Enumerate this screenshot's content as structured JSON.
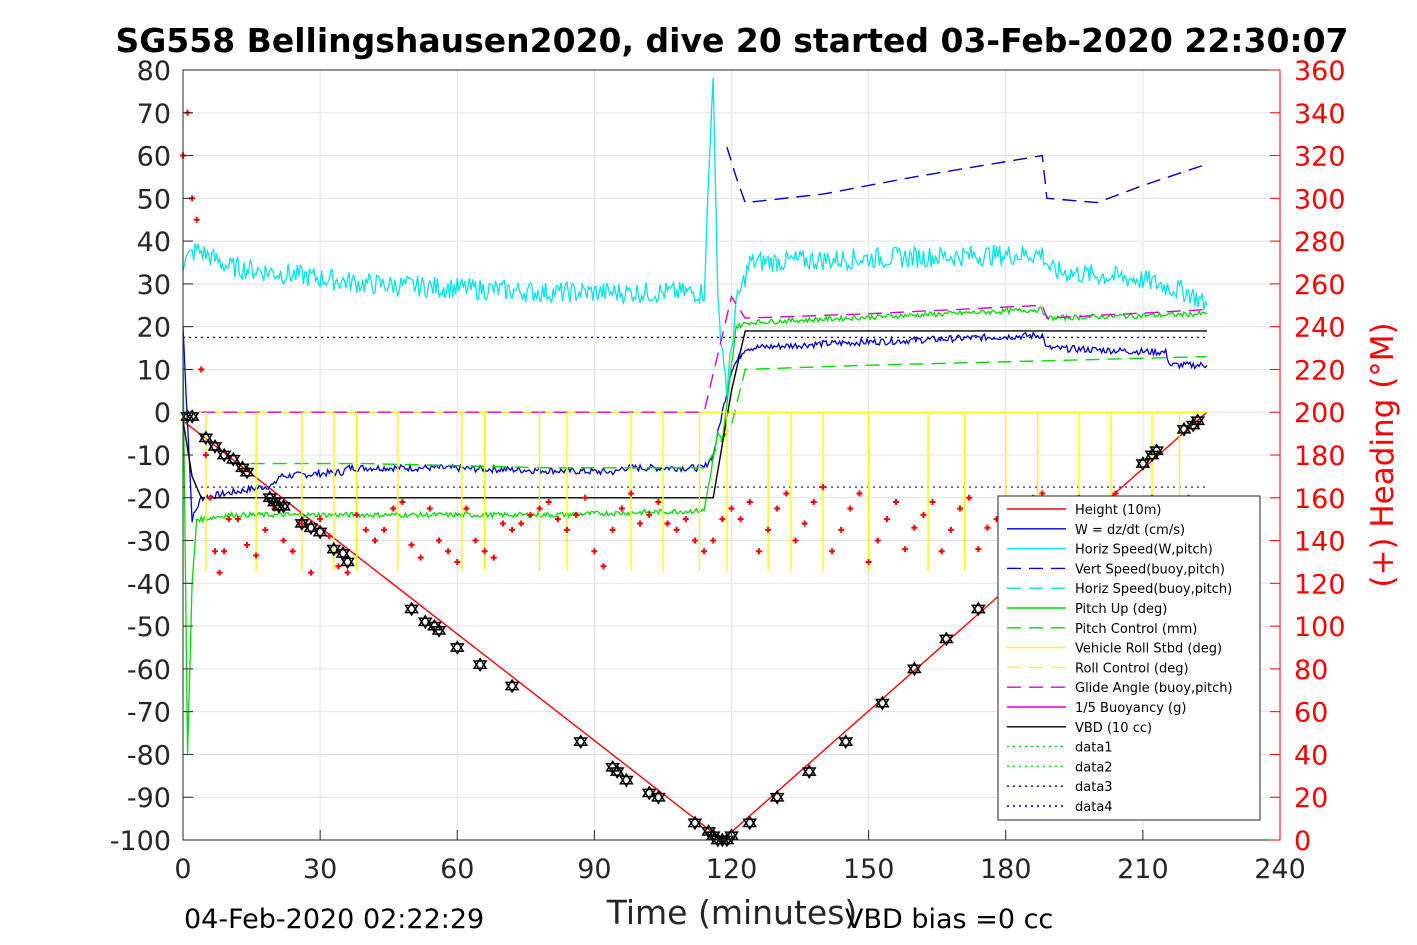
{
  "chart_data": {
    "type": "line",
    "title": "SG558 Bellingshausen2020, dive 20 started 03-Feb-2020 22:30:07",
    "xlabel": "Time (minutes)",
    "ylabel_right": "(+) Heading (°M)",
    "bottom_left_text": "04-Feb-2020 02:22:29",
    "bottom_right_text": "VBD bias =0 cc",
    "xlim": [
      0,
      240
    ],
    "ylim_left": [
      -100,
      80
    ],
    "ylim_right": [
      0,
      360
    ],
    "x_ticks": [
      0,
      30,
      60,
      90,
      120,
      150,
      180,
      210,
      240
    ],
    "y_ticks_left": [
      80,
      70,
      60,
      50,
      40,
      30,
      20,
      10,
      0,
      -10,
      -20,
      -30,
      -40,
      -50,
      -60,
      -70,
      -80,
      -90,
      -100
    ],
    "y_ticks_right": [
      360,
      340,
      320,
      300,
      280,
      260,
      240,
      220,
      200,
      180,
      160,
      140,
      120,
      100,
      80,
      60,
      40,
      20,
      0
    ],
    "grid": true,
    "legend_position": "lower-right",
    "colors": {
      "height": "#ff0000",
      "w": "#0000cc",
      "horiz": "#00e5e5",
      "pitch": "#00dd00",
      "roll": "#ffff00",
      "glide": "#dd00dd",
      "vbd": "#000000",
      "heading": "#ff0000",
      "data3": "#000088",
      "right_axis": "#ff0000"
    },
    "series": [
      {
        "name": "Height (10m)",
        "color": "#ff0000",
        "style": "solid",
        "x": [
          0,
          118,
          224
        ],
        "y": [
          -2,
          -100,
          0
        ]
      },
      {
        "name": "W = dz/dt (cm/s)",
        "color": "#0000cc",
        "style": "solid",
        "noise": 0.8,
        "x": [
          0,
          2,
          4,
          20,
          21,
          35,
          36,
          55,
          95,
          96,
          114,
          116,
          120,
          123,
          140,
          188,
          189,
          215,
          216,
          224
        ],
        "y": [
          20,
          -25,
          -20,
          -17,
          -15,
          -14,
          -13,
          -13,
          -14,
          -13,
          -13,
          -10,
          10,
          15,
          16,
          18,
          15,
          14,
          11,
          11
        ]
      },
      {
        "name": "Horiz Speed(W,pitch)",
        "color": "#00e5e5",
        "style": "solid",
        "noise": 2.5,
        "x": [
          0,
          3,
          10,
          40,
          80,
          100,
          114,
          116,
          117,
          119,
          121,
          124,
          150,
          188,
          190,
          210,
          220,
          224
        ],
        "y": [
          35,
          38,
          34,
          30,
          28,
          28,
          28,
          80,
          25,
          5,
          25,
          35,
          36,
          37,
          33,
          31,
          28,
          25
        ]
      },
      {
        "name": "Vert Speed(buoy,pitch)",
        "color": "#0000cc",
        "style": "dashed",
        "x": [
          119,
          121,
          123,
          140,
          160,
          188,
          189,
          200,
          210,
          224
        ],
        "y": [
          62,
          55,
          49,
          51,
          55,
          60,
          50,
          49,
          53,
          58
        ]
      },
      {
        "name": "Horiz Speed(buoy,pitch)",
        "color": "#00e5e5",
        "style": "dashed",
        "x": [],
        "y": []
      },
      {
        "name": "Pitch Up (deg)",
        "color": "#00dd00",
        "style": "solid",
        "noise": 0.6,
        "x": [
          0,
          1,
          2,
          3,
          4,
          10,
          40,
          80,
          114,
          117,
          118,
          121,
          124,
          188,
          189,
          224
        ],
        "y": [
          15,
          -80,
          -40,
          -25,
          -25,
          -24,
          -24,
          -24,
          -23,
          -5,
          -7,
          20,
          21,
          24,
          22,
          23
        ]
      },
      {
        "name": "Pitch Control (mm)",
        "color": "#00dd00",
        "style": "dashed",
        "x": [
          10,
          40,
          80,
          114,
          120,
          123,
          150,
          188,
          224
        ],
        "y": [
          -12,
          -12,
          -13,
          -13,
          -3,
          10,
          11,
          12,
          13
        ]
      },
      {
        "name": "Vehicle Roll Stbd (deg)",
        "color": "#ffff00",
        "style": "solid",
        "x": [
          0,
          224
        ],
        "y": [
          0,
          0
        ]
      },
      {
        "name": "Roll Control (deg)",
        "color": "#ffff00",
        "style": "dashed",
        "x": [],
        "y": []
      },
      {
        "name": "Glide Angle (buoy,pitch)",
        "color": "#dd00dd",
        "style": "dashed",
        "x": [
          4,
          114,
          120,
          123,
          150,
          188,
          189,
          224
        ],
        "y": [
          0,
          0,
          27,
          22,
          23,
          25,
          22,
          24
        ]
      },
      {
        "name": "1/5 Buoyancy (g)",
        "color": "#dd00dd",
        "style": "solid",
        "x": [],
        "y": []
      },
      {
        "name": "VBD (10 cc)",
        "color": "#000000",
        "style": "solid",
        "x": [
          0,
          2,
          4,
          114,
          116,
          120,
          123,
          224
        ],
        "y": [
          -2,
          -15,
          -20,
          -20,
          -20,
          5,
          19,
          19
        ]
      },
      {
        "name": "data1",
        "color": "#00dd00",
        "style": "dotted",
        "x": [],
        "y": []
      },
      {
        "name": "data2",
        "color": "#00dd00",
        "style": "dotted",
        "x": [],
        "y": []
      },
      {
        "name": "data3",
        "color": "#000088",
        "style": "dotted",
        "x": [
          0,
          224,
          0,
          224
        ],
        "y": [
          17.5,
          17.5,
          -17.5,
          -17.5
        ]
      },
      {
        "name": "data4",
        "color": "#000088",
        "style": "dotted",
        "x": [],
        "y": []
      }
    ],
    "heading_series": {
      "name": "Heading (°M)",
      "color": "#ff0000",
      "marker": "+",
      "x": [
        0,
        1,
        2,
        3,
        4,
        5,
        6,
        7,
        8,
        9,
        10,
        12,
        14,
        16,
        18,
        20,
        22,
        24,
        26,
        28,
        30,
        32,
        34,
        36,
        38,
        40,
        42,
        44,
        46,
        48,
        50,
        52,
        54,
        56,
        58,
        60,
        62,
        64,
        66,
        68,
        70,
        72,
        74,
        76,
        78,
        80,
        82,
        84,
        86,
        88,
        90,
        92,
        94,
        96,
        98,
        100,
        102,
        104,
        106,
        108,
        110,
        112,
        114,
        116,
        118,
        120,
        122,
        124,
        126,
        128,
        130,
        132,
        134,
        136,
        138,
        140,
        142,
        144,
        146,
        148,
        150,
        152,
        154,
        156,
        158,
        160,
        162,
        164,
        166,
        168,
        170,
        172,
        174,
        176,
        178,
        180,
        182,
        184,
        186,
        188,
        190,
        192,
        194,
        196,
        198,
        200,
        202,
        204,
        206,
        208,
        210,
        212,
        214,
        216,
        218,
        220,
        222,
        224
      ],
      "y": [
        320,
        340,
        300,
        290,
        220,
        180,
        160,
        135,
        125,
        135,
        150,
        150,
        138,
        133,
        145,
        155,
        140,
        135,
        148,
        125,
        150,
        142,
        128,
        125,
        152,
        145,
        140,
        145,
        155,
        158,
        138,
        132,
        155,
        140,
        135,
        130,
        155,
        140,
        135,
        132,
        148,
        145,
        148,
        152,
        155,
        158,
        150,
        145,
        152,
        160,
        135,
        128,
        145,
        155,
        162,
        148,
        152,
        158,
        148,
        145,
        150,
        140,
        135,
        140,
        150,
        155,
        150,
        158,
        135,
        145,
        155,
        162,
        140,
        148,
        158,
        165,
        135,
        145,
        155,
        162,
        130,
        140,
        150,
        158,
        136,
        146,
        152,
        158,
        135,
        145,
        155,
        160,
        136,
        146,
        150,
        158,
        140,
        145,
        160,
        162,
        140,
        150,
        155,
        160,
        138,
        148,
        155,
        162,
        140,
        150,
        155,
        160,
        140,
        148,
        155,
        160,
        148,
        150
      ]
    },
    "depth_markers": {
      "marker": "triangle",
      "x": [
        1,
        2,
        5,
        7,
        9,
        11,
        13,
        14,
        19,
        20,
        21,
        22,
        26,
        28,
        30,
        33,
        35,
        36,
        50,
        53,
        55,
        56,
        60,
        65,
        72,
        87,
        94,
        95,
        97,
        102,
        104,
        112,
        115,
        116,
        117,
        118,
        119,
        120,
        124,
        130,
        137,
        145,
        153,
        160,
        167,
        174,
        210,
        212,
        213,
        219,
        221,
        222
      ],
      "y": [
        -1,
        -1,
        -6,
        -8,
        -10,
        -11,
        -13,
        -14,
        -20,
        -21,
        -22,
        -22,
        -26,
        -27,
        -28,
        -32,
        -33,
        -35,
        -46,
        -49,
        -50,
        -51,
        -55,
        -59,
        -64,
        -77,
        -83,
        -84,
        -86,
        -89,
        -90,
        -96,
        -98,
        -99,
        -100,
        -100,
        -100,
        -99,
        -96,
        -90,
        -84,
        -77,
        -68,
        -60,
        -53,
        -46,
        -12,
        -10,
        -9,
        -4,
        -3,
        -2
      ]
    },
    "legend": [
      {
        "label": "Height (10m)",
        "color": "#ff0000",
        "style": "solid"
      },
      {
        "label": "W = dz/dt (cm/s)",
        "color": "#0000cc",
        "style": "solid"
      },
      {
        "label": "Horiz Speed(W,pitch)",
        "color": "#00e5e5",
        "style": "solid"
      },
      {
        "label": "Vert Speed(buoy,pitch)",
        "color": "#0000cc",
        "style": "dashed"
      },
      {
        "label": "Horiz Speed(buoy,pitch)",
        "color": "#00e5e5",
        "style": "dashed"
      },
      {
        "label": "Pitch Up (deg)",
        "color": "#00dd00",
        "style": "solid"
      },
      {
        "label": "Pitch Control (mm)",
        "color": "#00dd00",
        "style": "dashed"
      },
      {
        "label": "Vehicle Roll Stbd (deg)",
        "color": "#ffff00",
        "style": "solid"
      },
      {
        "label": "Roll Control (deg)",
        "color": "#ffff00",
        "style": "dashed"
      },
      {
        "label": "Glide Angle (buoy,pitch)",
        "color": "#dd00dd",
        "style": "dashed"
      },
      {
        "label": "1/5 Buoyancy (g)",
        "color": "#dd00dd",
        "style": "solid"
      },
      {
        "label": "VBD (10 cc)",
        "color": "#000000",
        "style": "solid"
      },
      {
        "label": "data1",
        "color": "#00dd00",
        "style": "dotted"
      },
      {
        "label": "data2",
        "color": "#00dd00",
        "style": "dotted"
      },
      {
        "label": "data3",
        "color": "#000088",
        "style": "dotted"
      },
      {
        "label": "data4",
        "color": "#000088",
        "style": "dotted"
      }
    ]
  }
}
